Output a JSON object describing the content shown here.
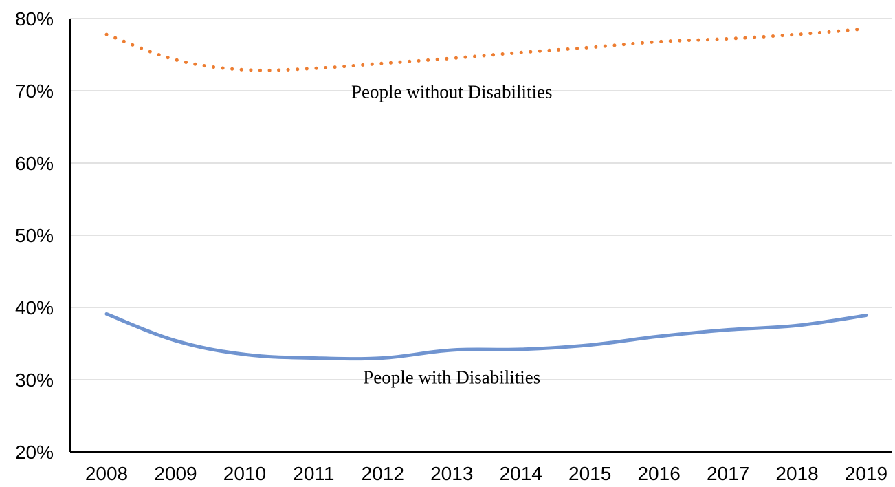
{
  "chart_data": {
    "type": "line",
    "x": [
      "2008",
      "2009",
      "2010",
      "2011",
      "2012",
      "2013",
      "2014",
      "2015",
      "2016",
      "2017",
      "2018",
      "2019"
    ],
    "series": [
      {
        "name": "People without Disabilities",
        "values": [
          77.8,
          74.3,
          72.9,
          73.1,
          73.8,
          74.5,
          75.3,
          76.0,
          76.8,
          77.2,
          77.8,
          78.6
        ],
        "color": "#ed7d31",
        "style": "dotted"
      },
      {
        "name": "People with Disabilities",
        "values": [
          39.1,
          35.4,
          33.5,
          33.0,
          33.0,
          34.1,
          34.2,
          34.8,
          36.0,
          36.9,
          37.5,
          38.9
        ],
        "color": "#7094d0",
        "style": "solid"
      }
    ],
    "ylim": [
      20,
      80
    ],
    "yticks": [
      "20%",
      "30%",
      "40%",
      "50%",
      "60%",
      "70%",
      "80%"
    ],
    "grid": true,
    "legend": "none",
    "annotations": [
      {
        "text": "People without Disabilities",
        "series": 0,
        "x": "2013",
        "y": 69
      },
      {
        "text": "People with Disabilities",
        "series": 1,
        "x": "2013",
        "y": 29.5
      }
    ]
  }
}
